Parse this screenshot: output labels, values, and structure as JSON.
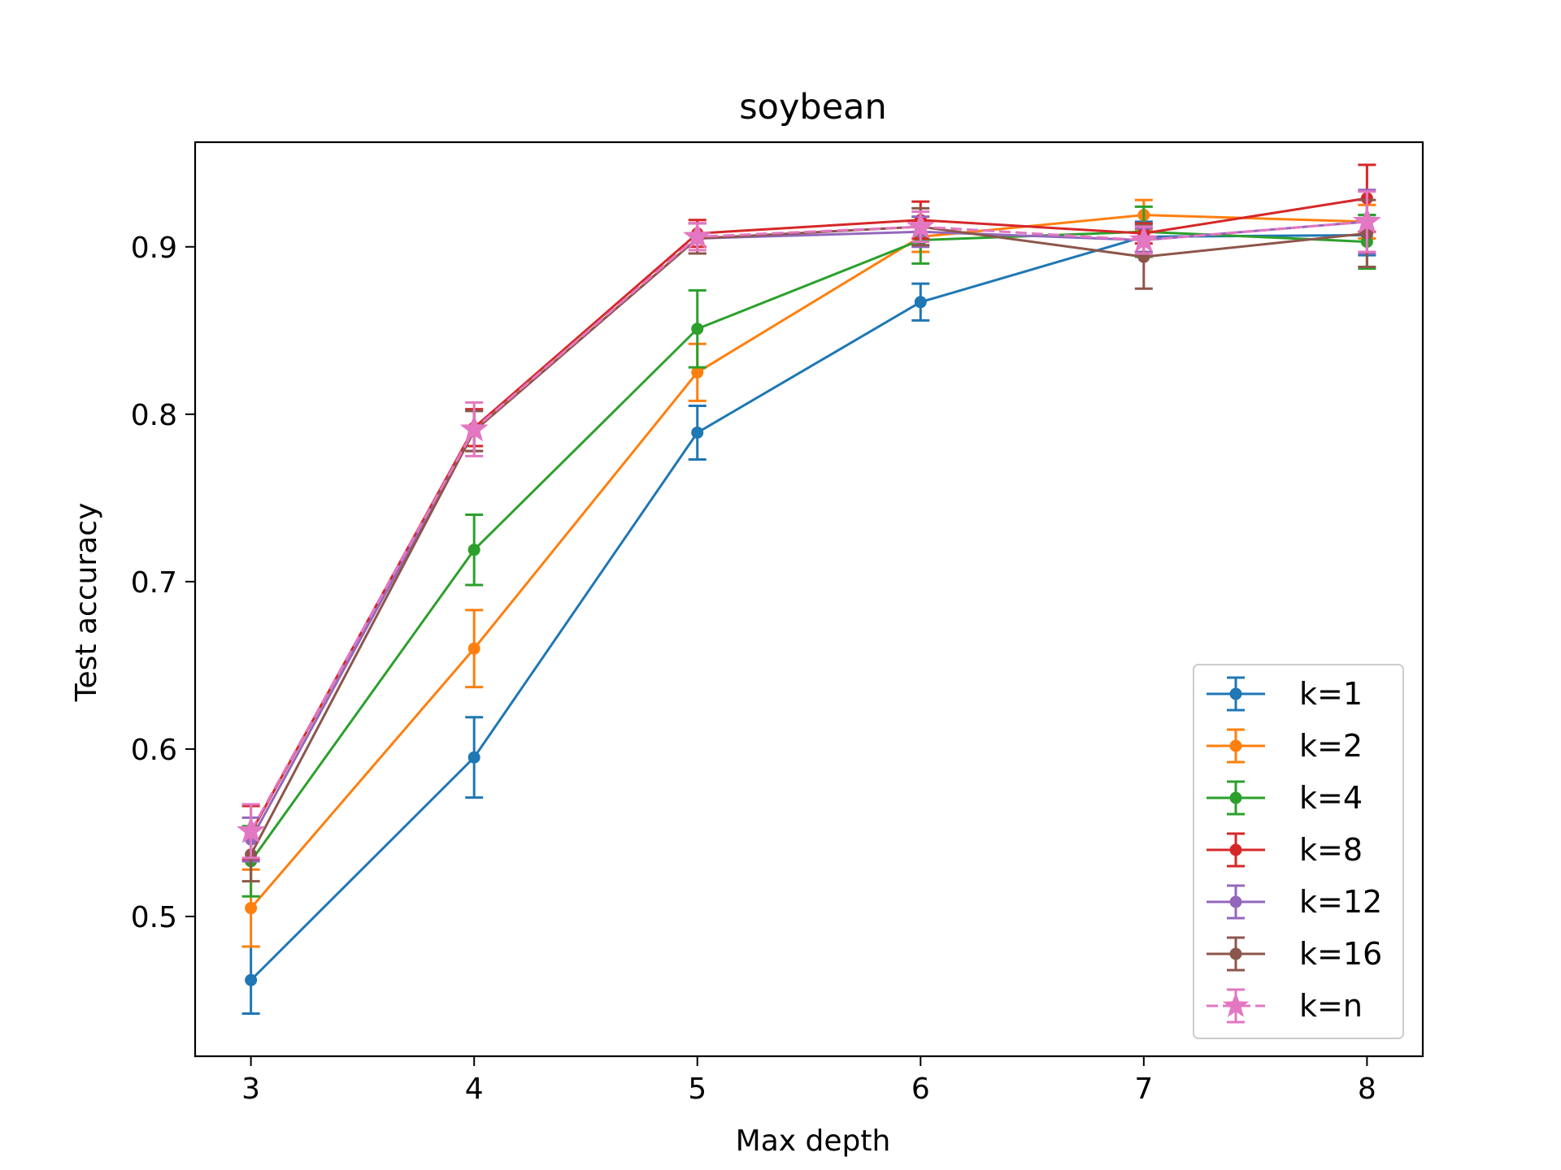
{
  "chart_data": {
    "type": "line",
    "title": "soybean",
    "xlabel": "Max depth",
    "ylabel": "Test accuracy",
    "x": [
      3,
      4,
      5,
      6,
      7,
      8
    ],
    "xlim": [
      2.75,
      8.25
    ],
    "ylim": [
      0.4165,
      0.9625
    ],
    "xticks": [
      3,
      4,
      5,
      6,
      7,
      8
    ],
    "yticks": [
      0.5,
      0.6,
      0.7,
      0.8,
      0.9
    ],
    "ytick_labels": [
      "0.5",
      "0.6",
      "0.7",
      "0.8",
      "0.9"
    ],
    "grid": false,
    "legend_position": "lower right",
    "series": [
      {
        "name": "k=1",
        "color": "#1f77b4",
        "marker": "dot",
        "dashed": false,
        "values": [
          0.462,
          0.595,
          0.789,
          0.867,
          0.906,
          0.907
        ],
        "errors": [
          0.02,
          0.024,
          0.016,
          0.011,
          0.009,
          0.012
        ]
      },
      {
        "name": "k=2",
        "color": "#ff7f0e",
        "marker": "dot",
        "dashed": false,
        "values": [
          0.505,
          0.66,
          0.825,
          0.906,
          0.919,
          0.915
        ],
        "errors": [
          0.023,
          0.023,
          0.017,
          0.009,
          0.009,
          0.01
        ]
      },
      {
        "name": "k=4",
        "color": "#2ca02c",
        "marker": "dot",
        "dashed": false,
        "values": [
          0.533,
          0.719,
          0.851,
          0.904,
          0.909,
          0.903
        ],
        "errors": [
          0.021,
          0.021,
          0.023,
          0.014,
          0.015,
          0.016
        ]
      },
      {
        "name": "k=8",
        "color": "#d62728",
        "marker": "dot",
        "dashed": false,
        "values": [
          0.55,
          0.792,
          0.908,
          0.916,
          0.908,
          0.929
        ],
        "errors": [
          0.016,
          0.011,
          0.008,
          0.011,
          0.006,
          0.02
        ]
      },
      {
        "name": "k=12",
        "color": "#9467bd",
        "marker": "dot",
        "dashed": false,
        "values": [
          0.546,
          0.79,
          0.905,
          0.909,
          0.904,
          0.915
        ],
        "errors": [
          0.013,
          0.012,
          0.009,
          0.009,
          0.007,
          0.019
        ]
      },
      {
        "name": "k=16",
        "color": "#8c564b",
        "marker": "dot",
        "dashed": false,
        "values": [
          0.537,
          0.79,
          0.905,
          0.912,
          0.894,
          0.908
        ],
        "errors": [
          0.016,
          0.012,
          0.009,
          0.011,
          0.019,
          0.02
        ]
      },
      {
        "name": "k=n",
        "color": "#e377c2",
        "marker": "star",
        "dashed": true,
        "values": [
          0.551,
          0.791,
          0.906,
          0.912,
          0.904,
          0.915
        ],
        "errors": [
          0.016,
          0.016,
          0.008,
          0.009,
          0.008,
          0.018
        ]
      }
    ]
  }
}
